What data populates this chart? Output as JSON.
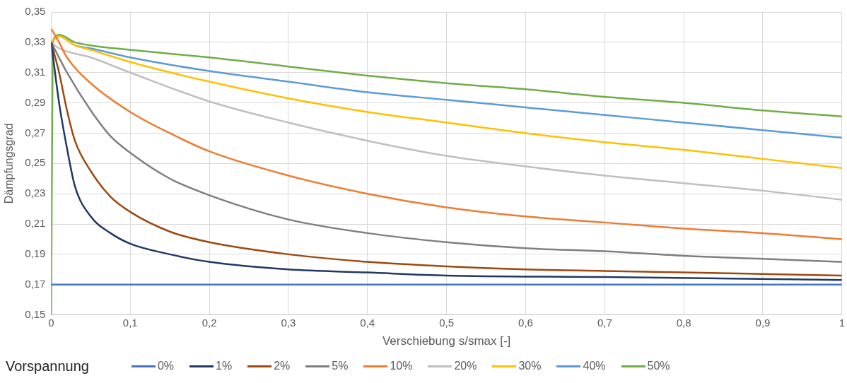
{
  "chart_data": {
    "type": "line",
    "xlabel": "Verschiebung s/smax [-]",
    "ylabel": "Dämpfungsgrad",
    "legend_title": "Vorspannung",
    "legend": "bottom",
    "grid": true,
    "marker": "none",
    "line_style": "solid",
    "xlim": [
      0,
      1
    ],
    "xticks": [
      0,
      {
        "value": 0.1,
        "label": "0,1"
      },
      {
        "value": 0.2,
        "label": "0,2"
      },
      {
        "value": 0.3,
        "label": "0,3"
      },
      {
        "value": 0.4,
        "label": "0,4"
      },
      {
        "value": 0.5,
        "label": "0,5"
      },
      {
        "value": 0.6,
        "label": "0,6"
      },
      {
        "value": 0.7,
        "label": "0,7"
      },
      {
        "value": 0.8,
        "label": "0,8"
      },
      {
        "value": 0.9,
        "label": "0,9"
      },
      1
    ],
    "ylim": [
      0.15,
      0.35
    ],
    "yticks": [
      {
        "value": 0.15,
        "label": "0,15"
      },
      {
        "value": 0.17,
        "label": "0,17"
      },
      {
        "value": 0.19,
        "label": "0,19"
      },
      {
        "value": 0.21,
        "label": "0,21"
      },
      {
        "value": 0.23,
        "label": "0,23"
      },
      {
        "value": 0.25,
        "label": "0,25"
      },
      {
        "value": 0.27,
        "label": "0,27"
      },
      {
        "value": 0.29,
        "label": "0,29"
      },
      {
        "value": 0.31,
        "label": "0,31"
      },
      {
        "value": 0.33,
        "label": "0,33"
      },
      {
        "value": 0.35,
        "label": "0,35"
      }
    ],
    "series": [
      {
        "name": "0%",
        "color": "#4472c4",
        "x": [
          0,
          1
        ],
        "values": [
          0.17,
          0.17
        ]
      },
      {
        "name": "1%",
        "color": "#203864",
        "x": [
          0,
          0.01,
          0.02,
          0.03,
          0.05,
          0.075,
          0.1,
          0.15,
          0.2,
          0.3,
          0.4,
          0.5,
          0.7,
          1
        ],
        "values": [
          0.33,
          0.29,
          0.26,
          0.235,
          0.215,
          0.204,
          0.197,
          0.19,
          0.185,
          0.18,
          0.178,
          0.176,
          0.175,
          0.173
        ]
      },
      {
        "name": "2%",
        "color": "#9e480e",
        "x": [
          0,
          0.01,
          0.02,
          0.03,
          0.05,
          0.075,
          0.1,
          0.15,
          0.2,
          0.3,
          0.4,
          0.5,
          0.6,
          0.7,
          0.8,
          0.9,
          1
        ],
        "values": [
          0.33,
          0.31,
          0.285,
          0.265,
          0.245,
          0.228,
          0.218,
          0.205,
          0.198,
          0.19,
          0.185,
          0.182,
          0.18,
          0.179,
          0.178,
          0.177,
          0.176
        ]
      },
      {
        "name": "5%",
        "color": "#7f7f7f",
        "x": [
          0,
          0.02,
          0.05,
          0.075,
          0.1,
          0.15,
          0.2,
          0.3,
          0.4,
          0.5,
          0.6,
          0.7,
          0.8,
          0.9,
          1
        ],
        "values": [
          0.33,
          0.31,
          0.285,
          0.268,
          0.257,
          0.24,
          0.229,
          0.213,
          0.204,
          0.198,
          0.194,
          0.192,
          0.189,
          0.187,
          0.185
        ]
      },
      {
        "name": "10%",
        "color": "#ed7d31",
        "x": [
          0,
          0.01,
          0.02,
          0.05,
          0.1,
          0.15,
          0.2,
          0.3,
          0.4,
          0.5,
          0.6,
          0.7,
          0.8,
          0.9,
          1
        ],
        "values": [
          0.339,
          0.33,
          0.32,
          0.303,
          0.284,
          0.27,
          0.258,
          0.242,
          0.23,
          0.221,
          0.215,
          0.211,
          0.207,
          0.204,
          0.2
        ]
      },
      {
        "name": "20%",
        "color": "#bfbfbf",
        "x": [
          0,
          0.01,
          0.05,
          0.1,
          0.2,
          0.3,
          0.4,
          0.5,
          0.6,
          0.7,
          0.8,
          0.9,
          1
        ],
        "values": [
          0.33,
          0.326,
          0.32,
          0.31,
          0.291,
          0.277,
          0.265,
          0.255,
          0.248,
          0.242,
          0.237,
          0.232,
          0.226
        ]
      },
      {
        "name": "30%",
        "color": "#ffc000",
        "x": [
          0,
          0.01,
          0.03,
          0.05,
          0.1,
          0.2,
          0.3,
          0.4,
          0.5,
          0.6,
          0.7,
          0.8,
          0.9,
          1
        ],
        "values": [
          0.33,
          0.334,
          0.328,
          0.325,
          0.317,
          0.304,
          0.293,
          0.284,
          0.277,
          0.27,
          0.264,
          0.259,
          0.253,
          0.247
        ]
      },
      {
        "name": "40%",
        "color": "#5b9bd5",
        "x": [
          0,
          0.01,
          0.03,
          0.05,
          0.1,
          0.2,
          0.3,
          0.4,
          0.5,
          0.6,
          0.7,
          0.8,
          0.9,
          1
        ],
        "values": [
          0.33,
          0.334,
          0.328,
          0.326,
          0.32,
          0.311,
          0.304,
          0.297,
          0.292,
          0.287,
          0.282,
          0.277,
          0.272,
          0.267
        ]
      },
      {
        "name": "50%",
        "color": "#70ad47",
        "x": [
          0,
          0.002,
          0.01,
          0.03,
          0.05,
          0.1,
          0.2,
          0.3,
          0.4,
          0.5,
          0.6,
          0.7,
          0.8,
          0.9,
          1
        ],
        "values": [
          0.15,
          0.33,
          0.335,
          0.33,
          0.328,
          0.325,
          0.32,
          0.314,
          0.308,
          0.303,
          0.299,
          0.294,
          0.29,
          0.285,
          0.281
        ]
      }
    ]
  }
}
